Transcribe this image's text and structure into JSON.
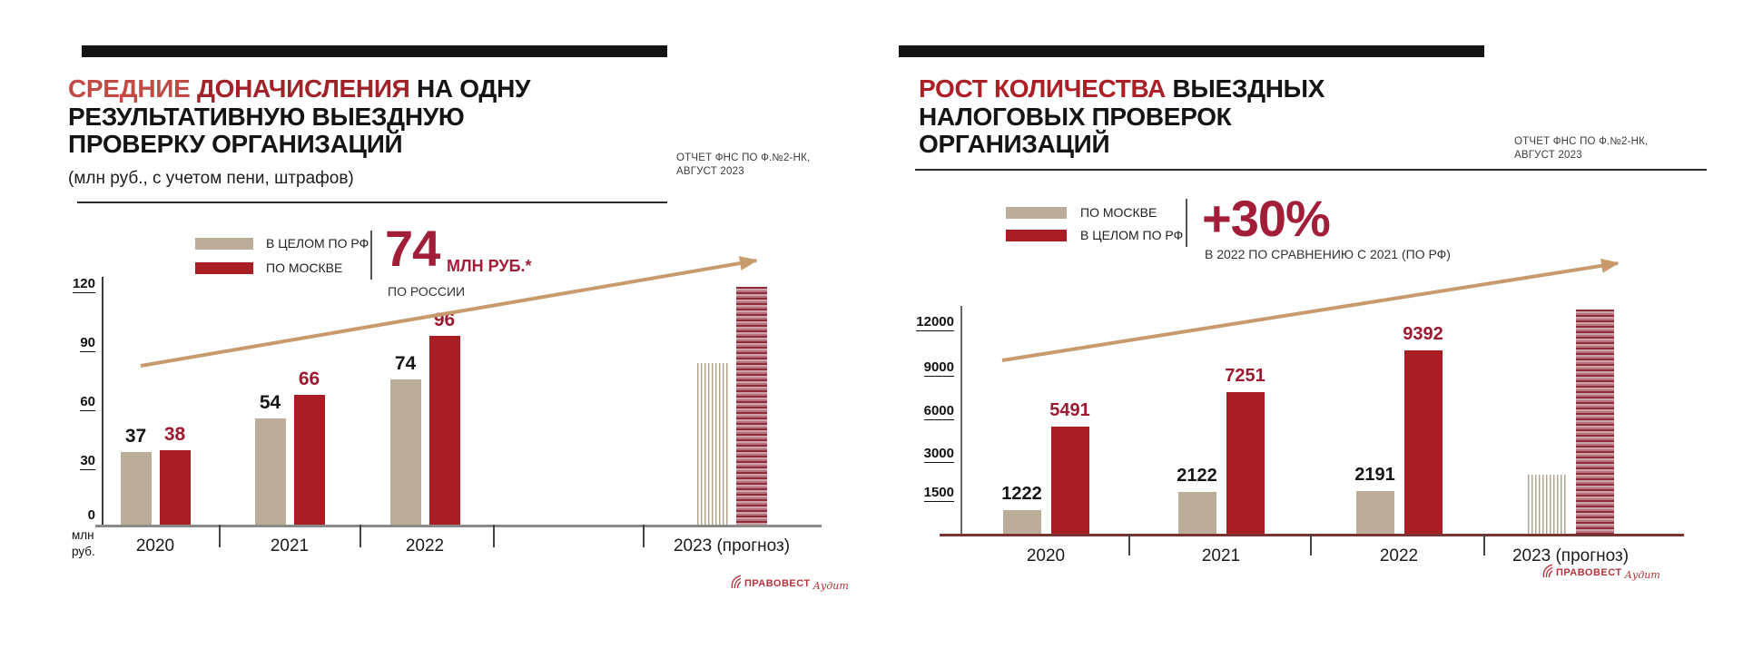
{
  "page": {
    "background": "#ffffff"
  },
  "logo": {
    "name": "ПРАВОВЕСТ",
    "sub": "Аудит",
    "color": "#B3343C"
  },
  "colors": {
    "beige": "#BCAD9A",
    "red": "#A91E24",
    "stat_red": "#A21D38",
    "arrow_tan": "#C79B6E",
    "left_axis": "#8a8a8a",
    "right_axis": "#7a3333"
  },
  "slides": {
    "left": {
      "title": {
        "highlight_light": "СРЕДНИЕ",
        "highlight_dark": "ДОНАЧИСЛЕНИЯ",
        "rest": "НА ОДНУ РЕЗУЛЬТАТИВНУЮ ВЫЕЗДНУЮ ПРОВЕРКУ ОРГАНИЗАЦИЙ"
      },
      "subtitle": "(млн руб., с учетом пени, штрафов)",
      "source_note": {
        "line1": "ОТЧЕТ ФНС ПО Ф.№2-НК,",
        "line2": "АВГУСТ 2023"
      },
      "legend": [
        {
          "label": "В ЦЕЛОМ ПО РФ",
          "color": "#BCAD9A"
        },
        {
          "label": "ПО МОСКВЕ",
          "color": "#A91E24"
        }
      ],
      "stat": {
        "value": "74",
        "unit": "МЛН РУБ.*",
        "caption": "ПО РОССИИ"
      },
      "chart_data": {
        "type": "bar",
        "title": "Средние доначисления на одну результативную выездную проверку организаций",
        "categories": [
          "2020",
          "2021",
          "2022",
          "2023 (прогноз)"
        ],
        "series": [
          {
            "name": "В ЦЕЛОМ ПО РФ",
            "color": "#BCAD9A",
            "label_color": "#161616",
            "values": [
              37,
              54,
              74,
              82
            ],
            "labels": [
              "37",
              "54",
              "74",
              ""
            ]
          },
          {
            "name": "ПО МОСКВЕ",
            "color": "#A91E24",
            "label_color": "#9C1A30",
            "values": [
              38,
              66,
              96,
              121
            ],
            "labels": [
              "38",
              "66",
              "96",
              ""
            ]
          }
        ],
        "forecast_category_index": 3,
        "forecast_values_estimated": true,
        "ylabel": "млн руб.",
        "yticks": [
          "120",
          "90",
          "60",
          "30",
          "0"
        ],
        "ylim": [
          0,
          130
        ],
        "grid": false,
        "legend_position": "top",
        "trend_arrow": true
      }
    },
    "right": {
      "title": {
        "highlight_dark": "РОСТ КОЛИЧЕСТВА",
        "rest": "ВЫЕЗДНЫХ НАЛОГОВЫХ ПРОВЕРОК ОРГАНИЗАЦИЙ"
      },
      "source_note": {
        "line1": "ОТЧЕТ ФНС ПО Ф.№2-НК,",
        "line2": "АВГУСТ 2023"
      },
      "legend": [
        {
          "label": "ПО МОСКВЕ",
          "color": "#BCAD9A"
        },
        {
          "label": "В ЦЕЛОМ ПО РФ",
          "color": "#A91E24"
        }
      ],
      "stat": {
        "value": "+30%",
        "unit": "",
        "caption": "В 2022 ПО СРАВНЕНИЮ С 2021 (ПО РФ)"
      },
      "chart_data": {
        "type": "bar",
        "title": "Рост количества выездных налоговых проверок организаций",
        "categories": [
          "2020",
          "2021",
          "2022",
          "2023 (прогноз)"
        ],
        "series": [
          {
            "name": "ПО МОСКВЕ",
            "color": "#BCAD9A",
            "label_color": "#161616",
            "values": [
              1222,
              2122,
              2191,
              3000
            ],
            "labels": [
              "1222",
              "2122",
              "2191",
              ""
            ]
          },
          {
            "name": "В ЦЕЛОМ ПО РФ",
            "color": "#A91E24",
            "label_color": "#9C1A30",
            "values": [
              5491,
              7251,
              9392,
              11500
            ],
            "labels": [
              "5491",
              "7251",
              "9392",
              ""
            ]
          }
        ],
        "forecast_category_index": 3,
        "forecast_values_estimated": true,
        "ylabel": "",
        "yticks": [
          "12000",
          "9000",
          "6000",
          "3000",
          "1500"
        ],
        "ylim": [
          0,
          13000
        ],
        "grid": false,
        "legend_position": "top",
        "trend_arrow": true
      }
    }
  }
}
